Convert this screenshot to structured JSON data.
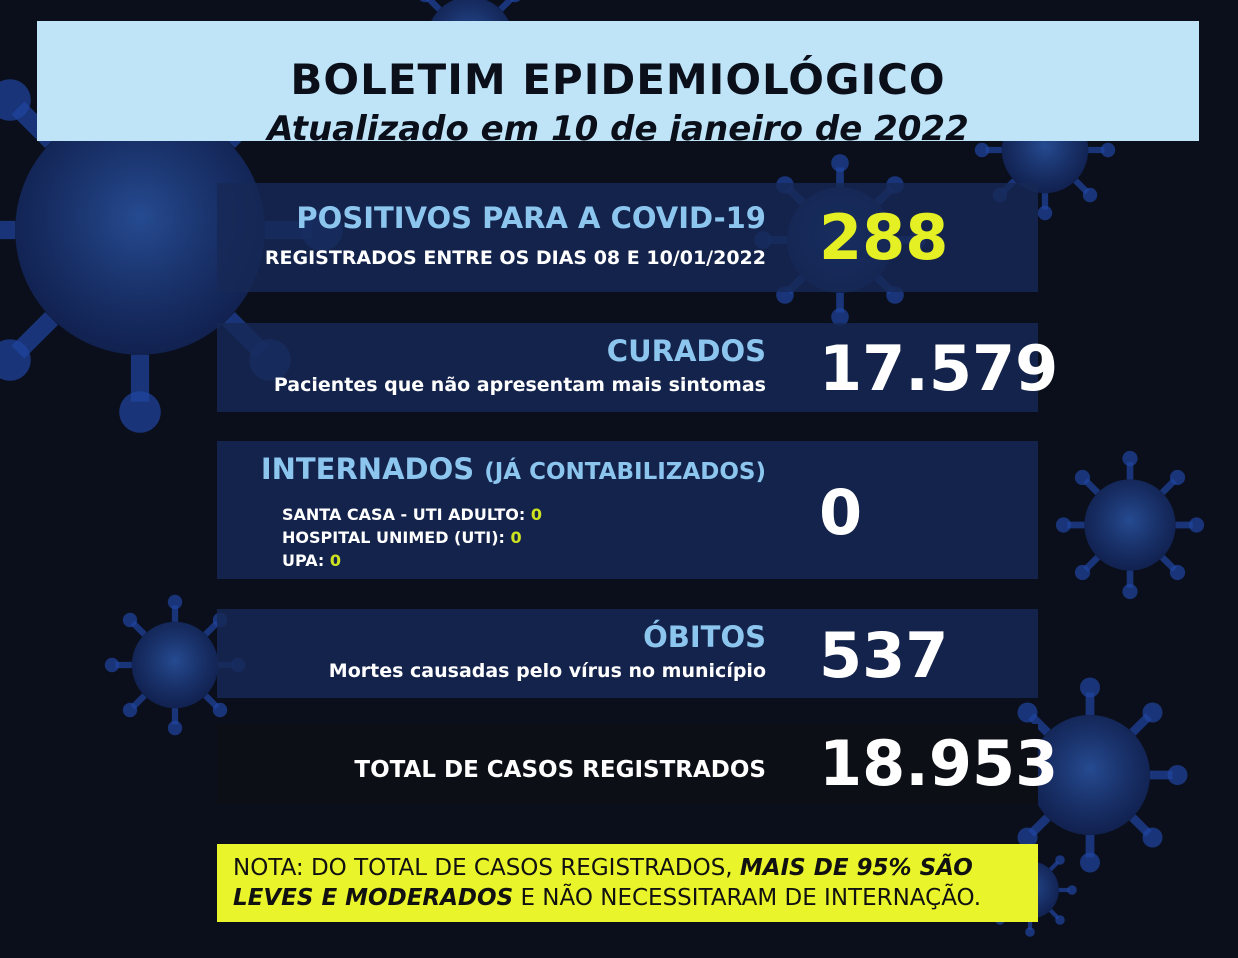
{
  "header": {
    "title": "BOLETIM EPIDEMIOLÓGICO",
    "subtitle": "Atualizado em 10 de janeiro de 2022"
  },
  "positivos": {
    "title": "POSITIVOS PARA A COVID-19",
    "subtitle": "REGISTRADOS ENTRE OS DIAS 08 E 10/01/2022",
    "value": "288"
  },
  "curados": {
    "title": "CURADOS",
    "subtitle": "Pacientes que não apresentam mais sintomas",
    "value": "17.579"
  },
  "internados": {
    "title": "INTERNADOS",
    "title_note": "(JÁ CONTABILIZADOS)",
    "value": "0",
    "items": [
      {
        "label": "SANTA CASA - UTI ADULTO:",
        "value": "0"
      },
      {
        "label": "HOSPITAL UNIMED (UTI):",
        "value": "0"
      },
      {
        "label": "UPA:",
        "value": "0"
      }
    ]
  },
  "obitos": {
    "title": "ÓBITOS",
    "subtitle": "Mortes causadas pelo vírus no município",
    "value": "537"
  },
  "total": {
    "label": "TOTAL DE CASOS REGISTRADOS",
    "value": "18.953"
  },
  "note": {
    "line1_plain": "NOTA: DO TOTAL DE CASOS REGISTRADOS, ",
    "line1_bold": "MAIS DE 95% SÃO",
    "line2_bold": "LEVES E MODERADOS",
    "line2_plain": " E NÃO NECESSITARAM DE INTERNAÇÃO."
  },
  "colors": {
    "background": "#0b0f1c",
    "header_bg": "#bfe4f8",
    "panel_title": "#8cc6ef",
    "highlight": "#e4f023",
    "note_bg": "#e9f42a"
  },
  "icons": [
    "coronavirus-icon"
  ]
}
